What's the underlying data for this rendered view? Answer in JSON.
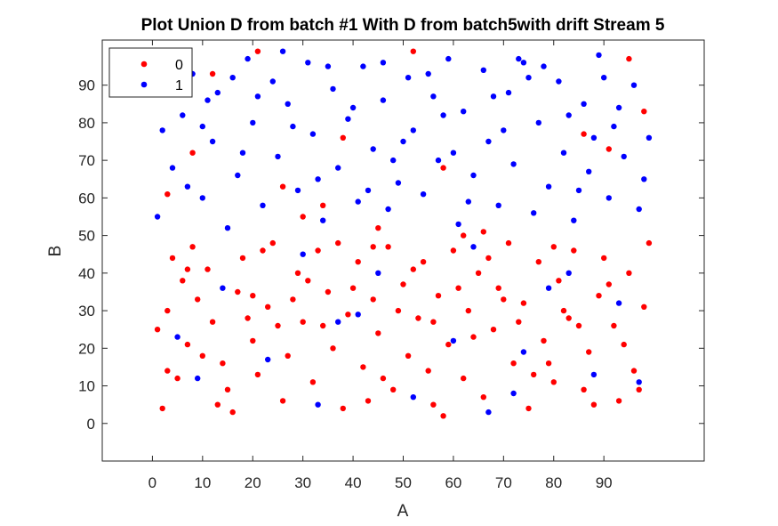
{
  "chart_data": {
    "type": "scatter",
    "title": "Plot Union D from batch #1 With D from batch5with drift Stream 5",
    "xlabel": "A",
    "ylabel": "B",
    "xlim": [
      -10,
      110
    ],
    "ylim": [
      -10,
      102
    ],
    "xticks": [
      0,
      10,
      20,
      30,
      40,
      50,
      60,
      70,
      80,
      90
    ],
    "yticks": [
      0,
      10,
      20,
      30,
      40,
      50,
      60,
      70,
      80,
      90
    ],
    "grid": false,
    "legend_position": "top-left",
    "series": [
      {
        "name": "0",
        "color": "#ff0000",
        "points": [
          [
            2,
            4
          ],
          [
            5,
            12
          ],
          [
            7,
            21
          ],
          [
            3,
            30
          ],
          [
            6,
            38
          ],
          [
            4,
            44
          ],
          [
            8,
            47
          ],
          [
            9,
            33
          ],
          [
            11,
            41
          ],
          [
            12,
            27
          ],
          [
            14,
            16
          ],
          [
            15,
            9
          ],
          [
            17,
            35
          ],
          [
            18,
            44
          ],
          [
            20,
            22
          ],
          [
            21,
            13
          ],
          [
            23,
            31
          ],
          [
            24,
            48
          ],
          [
            26,
            6
          ],
          [
            27,
            18
          ],
          [
            29,
            40
          ],
          [
            30,
            27
          ],
          [
            32,
            11
          ],
          [
            33,
            46
          ],
          [
            35,
            35
          ],
          [
            36,
            20
          ],
          [
            38,
            4
          ],
          [
            39,
            29
          ],
          [
            41,
            43
          ],
          [
            42,
            15
          ],
          [
            44,
            33
          ],
          [
            45,
            24
          ],
          [
            47,
            47
          ],
          [
            48,
            9
          ],
          [
            50,
            37
          ],
          [
            51,
            18
          ],
          [
            53,
            28
          ],
          [
            54,
            43
          ],
          [
            56,
            5
          ],
          [
            57,
            34
          ],
          [
            59,
            21
          ],
          [
            60,
            46
          ],
          [
            62,
            12
          ],
          [
            63,
            30
          ],
          [
            65,
            40
          ],
          [
            66,
            7
          ],
          [
            68,
            25
          ],
          [
            69,
            36
          ],
          [
            71,
            48
          ],
          [
            72,
            16
          ],
          [
            74,
            32
          ],
          [
            75,
            4
          ],
          [
            77,
            43
          ],
          [
            78,
            22
          ],
          [
            80,
            11
          ],
          [
            81,
            38
          ],
          [
            83,
            28
          ],
          [
            84,
            46
          ],
          [
            86,
            9
          ],
          [
            87,
            19
          ],
          [
            89,
            34
          ],
          [
            90,
            44
          ],
          [
            92,
            26
          ],
          [
            93,
            6
          ],
          [
            95,
            40
          ],
          [
            96,
            14
          ],
          [
            98,
            31
          ],
          [
            99,
            48
          ],
          [
            1,
            25
          ],
          [
            10,
            18
          ],
          [
            16,
            3
          ],
          [
            22,
            46
          ],
          [
            28,
            33
          ],
          [
            34,
            26
          ],
          [
            40,
            36
          ],
          [
            46,
            12
          ],
          [
            52,
            41
          ],
          [
            58,
            2
          ],
          [
            64,
            23
          ],
          [
            70,
            33
          ],
          [
            76,
            13
          ],
          [
            82,
            30
          ],
          [
            88,
            5
          ],
          [
            94,
            21
          ],
          [
            97,
            9
          ],
          [
            3,
            14
          ],
          [
            19,
            28
          ],
          [
            37,
            48
          ],
          [
            55,
            14
          ],
          [
            73,
            27
          ],
          [
            91,
            37
          ],
          [
            13,
            5
          ],
          [
            31,
            38
          ],
          [
            49,
            30
          ],
          [
            67,
            44
          ],
          [
            85,
            26
          ],
          [
            43,
            6
          ],
          [
            61,
            36
          ],
          [
            79,
            16
          ],
          [
            25,
            26
          ],
          [
            7,
            41
          ],
          [
            44,
            47
          ],
          [
            62,
            50
          ],
          [
            20,
            34
          ],
          [
            56,
            27
          ],
          [
            80,
            47
          ],
          [
            3,
            61
          ],
          [
            8,
            72
          ],
          [
            6,
            88
          ],
          [
            21,
            99
          ],
          [
            12,
            93
          ],
          [
            34,
            58
          ],
          [
            52,
            99
          ],
          [
            38,
            76
          ],
          [
            95,
            97
          ],
          [
            86,
            77
          ],
          [
            98,
            83
          ],
          [
            45,
            52
          ],
          [
            30,
            55
          ],
          [
            66,
            51
          ],
          [
            26,
            63
          ],
          [
            91,
            73
          ],
          [
            58,
            68
          ]
        ]
      },
      {
        "name": "1",
        "color": "#0000ff",
        "points": [
          [
            1,
            55
          ],
          [
            4,
            68
          ],
          [
            6,
            82
          ],
          [
            8,
            93
          ],
          [
            10,
            60
          ],
          [
            12,
            75
          ],
          [
            13,
            88
          ],
          [
            15,
            52
          ],
          [
            17,
            66
          ],
          [
            19,
            97
          ],
          [
            20,
            80
          ],
          [
            22,
            58
          ],
          [
            24,
            91
          ],
          [
            25,
            71
          ],
          [
            27,
            85
          ],
          [
            29,
            62
          ],
          [
            31,
            96
          ],
          [
            32,
            77
          ],
          [
            34,
            54
          ],
          [
            36,
            89
          ],
          [
            37,
            68
          ],
          [
            39,
            81
          ],
          [
            41,
            59
          ],
          [
            42,
            95
          ],
          [
            44,
            73
          ],
          [
            46,
            86
          ],
          [
            47,
            57
          ],
          [
            49,
            64
          ],
          [
            51,
            92
          ],
          [
            52,
            78
          ],
          [
            54,
            61
          ],
          [
            56,
            87
          ],
          [
            57,
            70
          ],
          [
            59,
            97
          ],
          [
            61,
            53
          ],
          [
            62,
            83
          ],
          [
            64,
            66
          ],
          [
            66,
            94
          ],
          [
            67,
            75
          ],
          [
            69,
            58
          ],
          [
            71,
            88
          ],
          [
            72,
            69
          ],
          [
            74,
            96
          ],
          [
            76,
            56
          ],
          [
            77,
            80
          ],
          [
            79,
            63
          ],
          [
            81,
            91
          ],
          [
            82,
            72
          ],
          [
            84,
            54
          ],
          [
            86,
            85
          ],
          [
            87,
            67
          ],
          [
            89,
            98
          ],
          [
            91,
            60
          ],
          [
            92,
            79
          ],
          [
            94,
            71
          ],
          [
            96,
            90
          ],
          [
            97,
            57
          ],
          [
            99,
            76
          ],
          [
            3,
            95
          ],
          [
            11,
            86
          ],
          [
            18,
            72
          ],
          [
            26,
            99
          ],
          [
            33,
            65
          ],
          [
            40,
            84
          ],
          [
            48,
            70
          ],
          [
            55,
            93
          ],
          [
            63,
            59
          ],
          [
            70,
            78
          ],
          [
            78,
            95
          ],
          [
            85,
            62
          ],
          [
            93,
            84
          ],
          [
            98,
            65
          ],
          [
            7,
            63
          ],
          [
            16,
            92
          ],
          [
            28,
            79
          ],
          [
            43,
            62
          ],
          [
            58,
            82
          ],
          [
            73,
            97
          ],
          [
            88,
            76
          ],
          [
            2,
            78
          ],
          [
            9,
            12
          ],
          [
            23,
            17
          ],
          [
            33,
            5
          ],
          [
            41,
            29
          ],
          [
            45,
            40
          ],
          [
            52,
            7
          ],
          [
            60,
            22
          ],
          [
            67,
            3
          ],
          [
            74,
            19
          ],
          [
            83,
            40
          ],
          [
            93,
            32
          ],
          [
            97,
            11
          ],
          [
            14,
            36
          ],
          [
            30,
            45
          ],
          [
            72,
            8
          ],
          [
            5,
            23
          ],
          [
            37,
            27
          ],
          [
            79,
            36
          ],
          [
            88,
            13
          ],
          [
            64,
            47
          ],
          [
            75,
            92
          ],
          [
            21,
            87
          ],
          [
            50,
            75
          ],
          [
            68,
            87
          ],
          [
            90,
            92
          ],
          [
            35,
            95
          ],
          [
            10,
            79
          ],
          [
            60,
            72
          ],
          [
            83,
            82
          ],
          [
            46,
            96
          ]
        ]
      }
    ]
  }
}
